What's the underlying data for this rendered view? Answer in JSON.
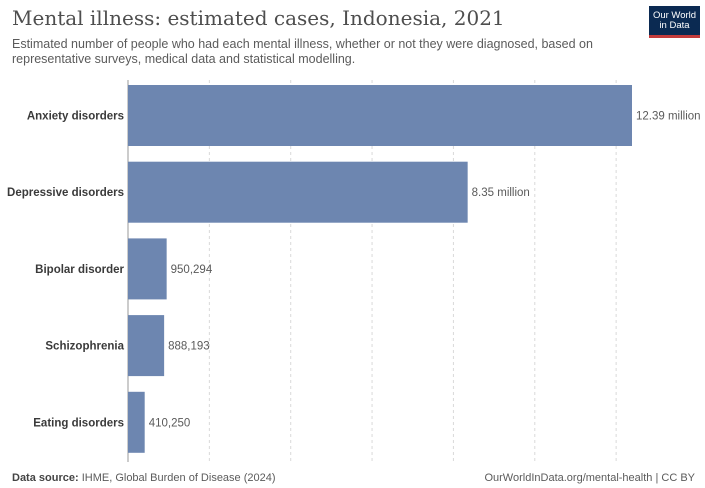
{
  "header": {
    "title": "Mental illness: estimated cases, Indonesia, 2021",
    "subtitle": "Estimated number of people who had each mental illness, whether or not they were diagnosed, based on representative surveys, medical data and statistical modelling."
  },
  "logo": {
    "line1": "Our World",
    "line2": "in Data"
  },
  "footer": {
    "source_label": "Data source:",
    "source_text": "IHME, Global Burden of Disease (2024)",
    "url": "OurWorldInData.org/mental-health | CC BY"
  },
  "colors": {
    "bar": "#6d86b0",
    "grid": "#d9d9d9"
  },
  "chart_data": {
    "type": "bar",
    "orientation": "horizontal",
    "categories": [
      "Anxiety disorders",
      "Depressive disorders",
      "Bipolar disorder",
      "Schizophrenia",
      "Eating disorders"
    ],
    "values": [
      12390000,
      8350000,
      950294,
      888193,
      410250
    ],
    "value_labels": [
      "12.39 million",
      "8.35 million",
      "950,294",
      "888,193",
      "410,250"
    ],
    "xlim": [
      0,
      12390000
    ],
    "grid": true
  }
}
